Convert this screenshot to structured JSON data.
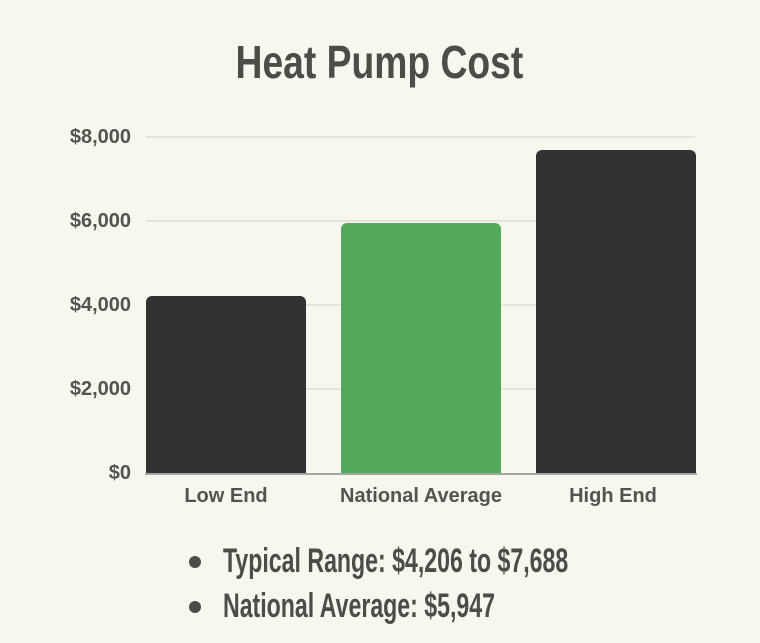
{
  "title": "Heat Pump Cost",
  "colors": {
    "background": "#f7f6ef",
    "text_dark": "#4d4c47",
    "axis_text": "#55534e",
    "gridline": "#e4e3dc",
    "baseline": "#a6a59f",
    "bar_dark": "#333230",
    "bar_green": "#55a95c"
  },
  "chart_data": {
    "type": "bar",
    "title": "Heat Pump Cost",
    "categories": [
      "Low End",
      "National Average",
      "High End"
    ],
    "values": [
      4206,
      5947,
      7688
    ],
    "bar_colors": [
      "#333230",
      "#55a95c",
      "#333230"
    ],
    "xlabel": "",
    "ylabel": "",
    "ylim": [
      0,
      8000
    ],
    "yticks": [
      "$8,000",
      "$6,000",
      "$4,000",
      "$2,000",
      "$0"
    ],
    "ytick_values": [
      8000,
      6000,
      4000,
      2000,
      0
    ],
    "grid": true,
    "legend": false
  },
  "notes": {
    "bullets": [
      "Typical Range: $4,206 to $7,688",
      "National Average: $5,947"
    ]
  }
}
